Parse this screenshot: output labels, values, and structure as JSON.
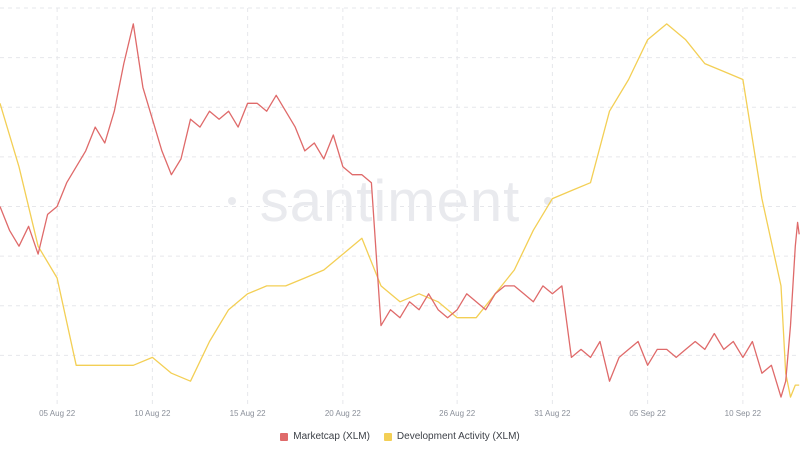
{
  "watermark": "santiment",
  "colors": {
    "marketcap": "#df6a6a",
    "dev_activity": "#f3cf55",
    "grid": "#e6e7eb"
  },
  "chart_data": {
    "type": "line",
    "title": "",
    "xlabel": "",
    "ylabel": "",
    "x_ticks": [
      "05 Aug 22",
      "10 Aug 22",
      "15 Aug 22",
      "20 Aug 22",
      "26 Aug 22",
      "31 Aug 22",
      "05 Sep 22",
      "10 Sep 22"
    ],
    "x_range": [
      "2022-08-02",
      "2022-09-12"
    ],
    "y_axes": "hidden",
    "grid": true,
    "legend": "bottom-center",
    "series": [
      {
        "name": "Marketcap (XLM)",
        "color": "#df6a6a",
        "relative_level_0_to_1": [
          [
            "2022-08-02",
            0.5
          ],
          [
            "2022-08-02T12:00",
            0.44
          ],
          [
            "2022-08-03",
            0.4
          ],
          [
            "2022-08-03T12:00",
            0.45
          ],
          [
            "2022-08-04",
            0.38
          ],
          [
            "2022-08-04T12:00",
            0.48
          ],
          [
            "2022-08-05",
            0.5
          ],
          [
            "2022-08-05T12:00",
            0.56
          ],
          [
            "2022-08-06",
            0.6
          ],
          [
            "2022-08-06T12:00",
            0.64
          ],
          [
            "2022-08-07",
            0.7
          ],
          [
            "2022-08-07T12:00",
            0.66
          ],
          [
            "2022-08-08",
            0.74
          ],
          [
            "2022-08-08T12:00",
            0.86
          ],
          [
            "2022-08-09",
            0.96
          ],
          [
            "2022-08-09T12:00",
            0.8
          ],
          [
            "2022-08-10",
            0.72
          ],
          [
            "2022-08-10T12:00",
            0.64
          ],
          [
            "2022-08-11",
            0.58
          ],
          [
            "2022-08-11T12:00",
            0.62
          ],
          [
            "2022-08-12",
            0.72
          ],
          [
            "2022-08-12T12:00",
            0.7
          ],
          [
            "2022-08-13",
            0.74
          ],
          [
            "2022-08-13T12:00",
            0.72
          ],
          [
            "2022-08-14",
            0.74
          ],
          [
            "2022-08-14T12:00",
            0.7
          ],
          [
            "2022-08-15",
            0.76
          ],
          [
            "2022-08-15T12:00",
            0.76
          ],
          [
            "2022-08-16",
            0.74
          ],
          [
            "2022-08-16T12:00",
            0.78
          ],
          [
            "2022-08-17",
            0.74
          ],
          [
            "2022-08-17T12:00",
            0.7
          ],
          [
            "2022-08-18",
            0.64
          ],
          [
            "2022-08-18T12:00",
            0.66
          ],
          [
            "2022-08-19",
            0.62
          ],
          [
            "2022-08-19T12:00",
            0.68
          ],
          [
            "2022-08-20",
            0.6
          ],
          [
            "2022-08-20T12:00",
            0.58
          ],
          [
            "2022-08-21",
            0.58
          ],
          [
            "2022-08-21T12:00",
            0.56
          ],
          [
            "2022-08-22",
            0.2
          ],
          [
            "2022-08-22T12:00",
            0.24
          ],
          [
            "2022-08-23",
            0.22
          ],
          [
            "2022-08-23T12:00",
            0.26
          ],
          [
            "2022-08-24",
            0.24
          ],
          [
            "2022-08-24T12:00",
            0.28
          ],
          [
            "2022-08-25",
            0.24
          ],
          [
            "2022-08-25T12:00",
            0.22
          ],
          [
            "2022-08-26",
            0.24
          ],
          [
            "2022-08-26T12:00",
            0.28
          ],
          [
            "2022-08-27",
            0.26
          ],
          [
            "2022-08-27T12:00",
            0.24
          ],
          [
            "2022-08-28",
            0.28
          ],
          [
            "2022-08-28T12:00",
            0.3
          ],
          [
            "2022-08-29",
            0.3
          ],
          [
            "2022-08-29T12:00",
            0.28
          ],
          [
            "2022-08-30",
            0.26
          ],
          [
            "2022-08-30T12:00",
            0.3
          ],
          [
            "2022-08-31",
            0.28
          ],
          [
            "2022-08-31T12:00",
            0.3
          ],
          [
            "2022-09-01",
            0.12
          ],
          [
            "2022-09-01T12:00",
            0.14
          ],
          [
            "2022-09-02",
            0.12
          ],
          [
            "2022-09-02T12:00",
            0.16
          ],
          [
            "2022-09-03",
            0.06
          ],
          [
            "2022-09-03T12:00",
            0.12
          ],
          [
            "2022-09-04",
            0.14
          ],
          [
            "2022-09-04T12:00",
            0.16
          ],
          [
            "2022-09-05",
            0.1
          ],
          [
            "2022-09-05T12:00",
            0.14
          ],
          [
            "2022-09-06",
            0.14
          ],
          [
            "2022-09-06T12:00",
            0.12
          ],
          [
            "2022-09-07",
            0.14
          ],
          [
            "2022-09-07T12:00",
            0.16
          ],
          [
            "2022-09-08",
            0.14
          ],
          [
            "2022-09-08T12:00",
            0.18
          ],
          [
            "2022-09-09",
            0.14
          ],
          [
            "2022-09-09T12:00",
            0.16
          ],
          [
            "2022-09-10",
            0.12
          ],
          [
            "2022-09-10T12:00",
            0.16
          ],
          [
            "2022-09-11",
            0.08
          ],
          [
            "2022-09-11T12:00",
            0.1
          ],
          [
            "2022-09-12",
            0.02
          ],
          [
            "2022-09-12T06:00",
            0.06
          ],
          [
            "2022-09-12T12:00",
            0.2
          ],
          [
            "2022-09-12T18:00",
            0.4
          ],
          [
            "2022-09-12T21:00",
            0.46
          ],
          [
            "2022-09-12T23:00",
            0.43
          ]
        ]
      },
      {
        "name": "Development Activity (XLM)",
        "color": "#f3cf55",
        "relative_level_0_to_1": [
          [
            "2022-08-02",
            0.76
          ],
          [
            "2022-08-03",
            0.6
          ],
          [
            "2022-08-04",
            0.4
          ],
          [
            "2022-08-05",
            0.32
          ],
          [
            "2022-08-06",
            0.1
          ],
          [
            "2022-08-07",
            0.1
          ],
          [
            "2022-08-08",
            0.1
          ],
          [
            "2022-08-09",
            0.1
          ],
          [
            "2022-08-10",
            0.12
          ],
          [
            "2022-08-11",
            0.08
          ],
          [
            "2022-08-12",
            0.06
          ],
          [
            "2022-08-13",
            0.16
          ],
          [
            "2022-08-14",
            0.24
          ],
          [
            "2022-08-15",
            0.28
          ],
          [
            "2022-08-16",
            0.3
          ],
          [
            "2022-08-17",
            0.3
          ],
          [
            "2022-08-18",
            0.32
          ],
          [
            "2022-08-19",
            0.34
          ],
          [
            "2022-08-20",
            0.38
          ],
          [
            "2022-08-21",
            0.42
          ],
          [
            "2022-08-22",
            0.3
          ],
          [
            "2022-08-23",
            0.26
          ],
          [
            "2022-08-24",
            0.28
          ],
          [
            "2022-08-25",
            0.26
          ],
          [
            "2022-08-26",
            0.22
          ],
          [
            "2022-08-27",
            0.22
          ],
          [
            "2022-08-28",
            0.28
          ],
          [
            "2022-08-29",
            0.34
          ],
          [
            "2022-08-30",
            0.44
          ],
          [
            "2022-08-31",
            0.52
          ],
          [
            "2022-09-01",
            0.54
          ],
          [
            "2022-09-02",
            0.56
          ],
          [
            "2022-09-03",
            0.74
          ],
          [
            "2022-09-04",
            0.82
          ],
          [
            "2022-09-05",
            0.92
          ],
          [
            "2022-09-06",
            0.96
          ],
          [
            "2022-09-07",
            0.92
          ],
          [
            "2022-09-08",
            0.86
          ],
          [
            "2022-09-09",
            0.84
          ],
          [
            "2022-09-10",
            0.82
          ],
          [
            "2022-09-11",
            0.52
          ],
          [
            "2022-09-12",
            0.3
          ],
          [
            "2022-09-12T06:00",
            0.08
          ],
          [
            "2022-09-12T12:00",
            0.02
          ],
          [
            "2022-09-12T18:00",
            0.05
          ],
          [
            "2022-09-12T23:00",
            0.05
          ]
        ]
      }
    ]
  }
}
